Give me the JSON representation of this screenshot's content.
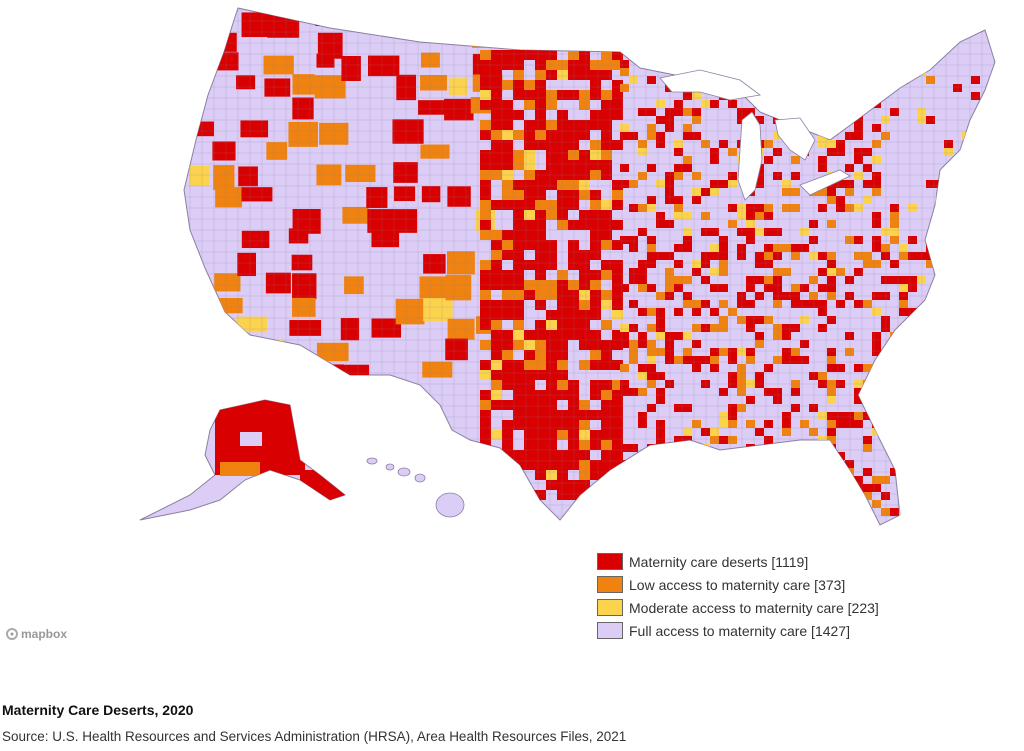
{
  "map": {
    "colors": {
      "desert": "#d80000",
      "low": "#f0820f",
      "moderate": "#fcd34d",
      "full": "#dccdf7",
      "border": "#8a80a0"
    }
  },
  "legend": {
    "items": [
      {
        "label": "Maternity care deserts [1119]",
        "color": "#d80000"
      },
      {
        "label": "Low access to maternity care [373]",
        "color": "#f0820f"
      },
      {
        "label": "Moderate access to maternity care [223]",
        "color": "#fcd34d"
      },
      {
        "label": "Full access to maternity care [1427]",
        "color": "#dccdf7"
      }
    ]
  },
  "attribution": {
    "logo_text": "mapbox"
  },
  "caption": {
    "title": "Maternity Care Deserts, 2020",
    "source": "Source: U.S. Health Resources and Services Administration (HRSA), Area Health Resources Files, 2021"
  }
}
